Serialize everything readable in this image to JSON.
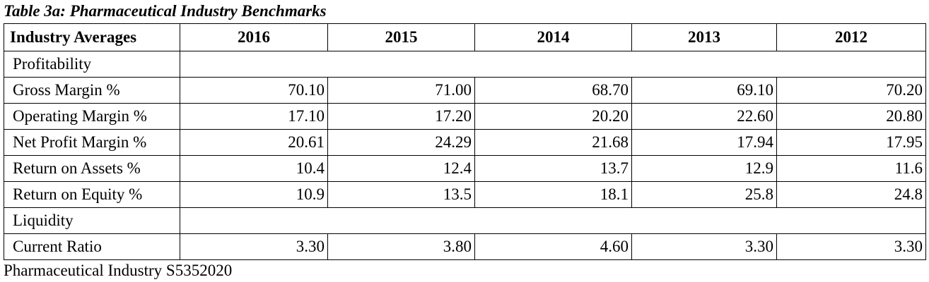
{
  "caption": "Table 3a: Pharmaceutical Industry Benchmarks",
  "table": {
    "headers": [
      "Industry Averages",
      "2016",
      "2015",
      "2014",
      "2013",
      "2012"
    ],
    "rows": [
      {
        "type": "section",
        "label": "Profitability"
      },
      {
        "type": "data",
        "label": "Gross Margin %",
        "values": [
          "70.10",
          "71.00",
          "68.70",
          "69.10",
          "70.20"
        ]
      },
      {
        "type": "data",
        "label": "Operating Margin %",
        "values": [
          "17.10",
          "17.20",
          "20.20",
          "22.60",
          "20.80"
        ]
      },
      {
        "type": "data",
        "label": "Net Profit Margin %",
        "values": [
          "20.61",
          "24.29",
          "21.68",
          "17.94",
          "17.95"
        ]
      },
      {
        "type": "data",
        "label": "Return on Assets %",
        "values": [
          "10.4",
          "12.4",
          "13.7",
          "12.9",
          "11.6"
        ]
      },
      {
        "type": "data",
        "label": "Return on Equity %",
        "values": [
          "10.9",
          "13.5",
          "18.1",
          "25.8",
          "24.8"
        ]
      },
      {
        "type": "section",
        "label": "Liquidity"
      },
      {
        "type": "data",
        "label": "Current Ratio",
        "values": [
          "3.30",
          "3.80",
          "4.60",
          "3.30",
          "3.30"
        ]
      }
    ]
  },
  "footer": "Pharmaceutical Industry S5352020"
}
